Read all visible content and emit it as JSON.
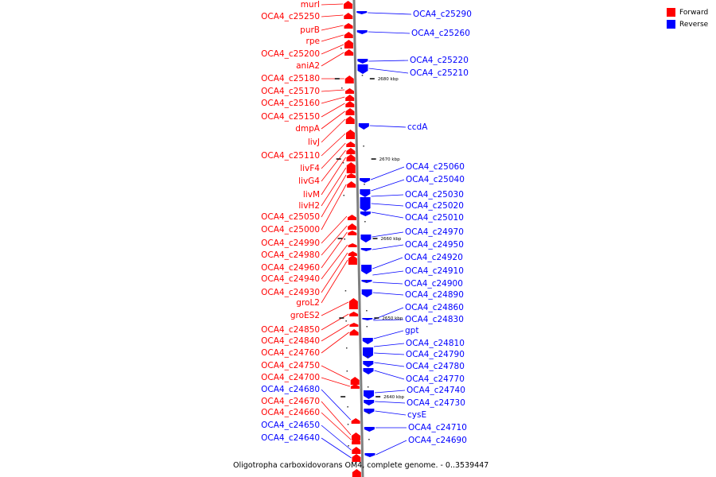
{
  "caption": "Oligotropha carboxidovorans OM4, complete genome. - 0..3539447",
  "legend": [
    {
      "label": "Forward",
      "color": "#ff0000"
    },
    {
      "label": "Reverse",
      "color": "#0000ff"
    }
  ],
  "colors": {
    "forward": "#ff0000",
    "reverse": "#0000ff",
    "backbone": "#7f7f7f"
  },
  "ticks": [
    "2680 kbp",
    "2670 kbp",
    "2660 kbp",
    "2650 kbp",
    "2640 kbp"
  ],
  "forward_labels": [
    "murI",
    "OCA4_c25250",
    "purB",
    "rpe",
    "OCA4_c25200",
    "aniA2",
    "OCA4_c25180",
    "OCA4_c25170",
    "OCA4_c25160",
    "OCA4_c25150",
    "dmpA",
    "livJ",
    "OCA4_c25110",
    "livF4",
    "livG4",
    "livM",
    "livH2",
    "OCA4_c25050",
    "OCA4_c25000",
    "OCA4_c24990",
    "OCA4_c24980",
    "OCA4_c24960",
    "OCA4_c24940",
    "OCA4_c24930",
    "groL2",
    "groES2",
    "OCA4_c24850",
    "OCA4_c24840",
    "OCA4_c24760",
    "OCA4_c24750",
    "OCA4_c24700",
    "OCA4_c24680",
    "OCA4_c24670",
    "OCA4_c24660",
    "OCA4_c24650",
    "OCA4_c24640"
  ],
  "reverse_labels": [
    "OCA4_c25290",
    "OCA4_c25260",
    "OCA4_c25220",
    "OCA4_c25210",
    "ccdA",
    "OCA4_c25060",
    "OCA4_c25040",
    "OCA4_c25030",
    "OCA4_c25020",
    "OCA4_c25010",
    "OCA4_c24970",
    "OCA4_c24950",
    "OCA4_c24920",
    "OCA4_c24910",
    "OCA4_c24900",
    "OCA4_c24890",
    "OCA4_c24860",
    "OCA4_c24830",
    "gpt",
    "OCA4_c24810",
    "OCA4_c24790",
    "OCA4_c24780",
    "OCA4_c24770",
    "OCA4_c24740",
    "OCA4_c24730",
    "cysE",
    "OCA4_c24710",
    "OCA4_c24690"
  ],
  "reverse_label_colors_note": "",
  "forward_label_colors": [
    "#ff0000",
    "#ff0000",
    "#ff0000",
    "#ff0000",
    "#ff0000",
    "#ff0000",
    "#ff0000",
    "#ff0000",
    "#ff0000",
    "#ff0000",
    "#ff0000",
    "#ff0000",
    "#ff0000",
    "#ff0000",
    "#ff0000",
    "#ff0000",
    "#ff0000",
    "#ff0000",
    "#ff0000",
    "#ff0000",
    "#ff0000",
    "#ff0000",
    "#ff0000",
    "#ff0000",
    "#ff0000",
    "#ff0000",
    "#ff0000",
    "#ff0000",
    "#ff0000",
    "#ff0000",
    "#ff0000",
    "#0000ff",
    "#ff0000",
    "#ff0000",
    "#0000ff",
    "#0000ff"
  ]
}
